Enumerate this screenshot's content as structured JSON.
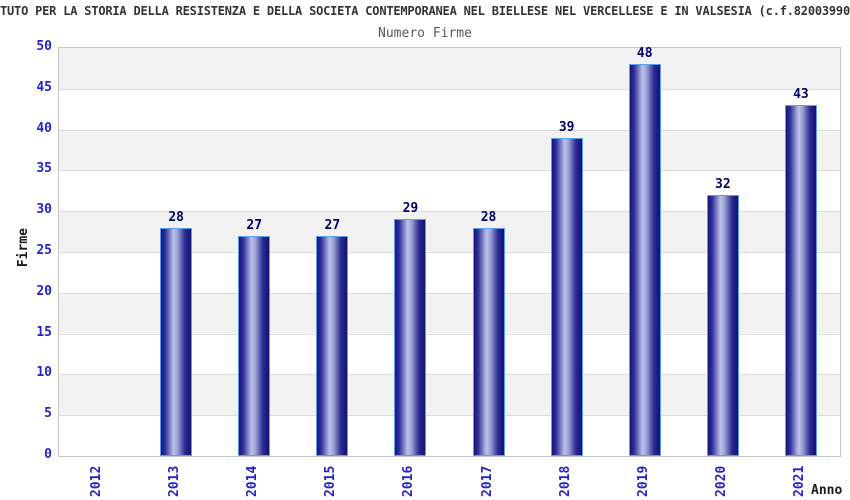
{
  "header": {
    "title": "TUTO PER LA STORIA DELLA RESISTENZA E DELLA SOCIETA CONTEMPORANEA NEL BIELLESE NEL VERCELLESE E IN VALSESIA (c.f.82003990"
  },
  "chart_data": {
    "type": "bar",
    "title": "Numero Firme",
    "xlabel": "Anno",
    "ylabel": "Firme",
    "categories": [
      "2012",
      "2013",
      "2014",
      "2015",
      "2016",
      "2017",
      "2018",
      "2019",
      "2020",
      "2021"
    ],
    "values": [
      0,
      28,
      27,
      27,
      29,
      28,
      39,
      48,
      32,
      43
    ],
    "ylim": [
      0,
      50
    ],
    "ytick_step": 5,
    "grid": true,
    "legend": "none",
    "colors": {
      "bar_dark": "#14147a",
      "bar_light": "#bcc2e8",
      "bar_border": "#5b9ff2",
      "axis_tick_label": "#2323c8",
      "value_label": "#000066",
      "band_gray": "#f2f2f2",
      "band_white": "#ffffff",
      "title_text": "#333333",
      "subtitle_text": "#5a5a5a"
    }
  }
}
